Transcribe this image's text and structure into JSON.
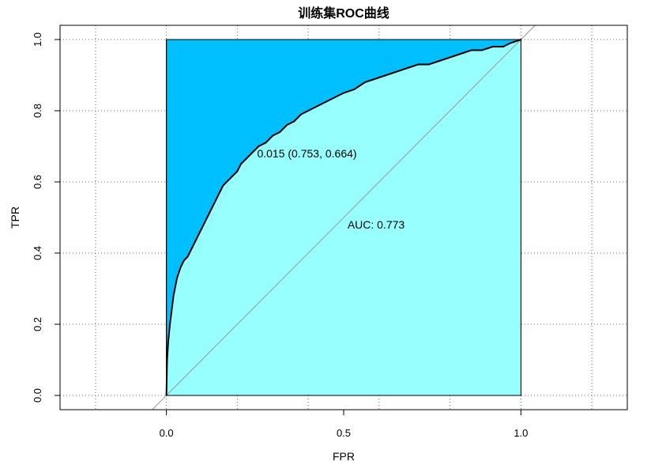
{
  "chart_data": {
    "type": "area",
    "title": "训练集ROC曲线",
    "xlabel": "FPR",
    "ylabel": "TPR",
    "xlim": [
      -0.3,
      1.3
    ],
    "ylim": [
      -0.04,
      1.04
    ],
    "x_ticks": [
      "0.0",
      "0.5",
      "1.0"
    ],
    "x_tick_values": [
      0,
      0.5,
      1
    ],
    "y_ticks": [
      "0.0",
      "0.2",
      "0.4",
      "0.6",
      "0.8",
      "1.0"
    ],
    "y_tick_values": [
      0,
      0.2,
      0.4,
      0.6,
      0.8,
      1
    ],
    "grid": true,
    "grid_x": [
      -0.2,
      0,
      0.2,
      0.4,
      0.6,
      0.8,
      1,
      1.2
    ],
    "grid_y": [
      0,
      0.2,
      0.4,
      0.6,
      0.8,
      1
    ],
    "series": [
      {
        "x": [
          0,
          0.002,
          0.005,
          0.01,
          0.015,
          0.02,
          0.03,
          0.04,
          0.05,
          0.06,
          0.07,
          0.08,
          0.09,
          0.1,
          0.11,
          0.12,
          0.13,
          0.14,
          0.15,
          0.16,
          0.17,
          0.18,
          0.19,
          0.2,
          0.21,
          0.22,
          0.23,
          0.24,
          0.26,
          0.28,
          0.3,
          0.32,
          0.34,
          0.36,
          0.38,
          0.4,
          0.42,
          0.44,
          0.46,
          0.48,
          0.5,
          0.53,
          0.56,
          0.59,
          0.62,
          0.65,
          0.68,
          0.71,
          0.74,
          0.77,
          0.8,
          0.83,
          0.86,
          0.89,
          0.92,
          0.95,
          0.97,
          1
        ],
        "y": [
          0,
          0.1,
          0.15,
          0.2,
          0.24,
          0.28,
          0.33,
          0.36,
          0.38,
          0.39,
          0.41,
          0.43,
          0.45,
          0.47,
          0.49,
          0.51,
          0.53,
          0.55,
          0.57,
          0.59,
          0.6,
          0.61,
          0.62,
          0.63,
          0.65,
          0.66,
          0.67,
          0.68,
          0.7,
          0.71,
          0.73,
          0.74,
          0.76,
          0.77,
          0.79,
          0.8,
          0.81,
          0.82,
          0.83,
          0.84,
          0.85,
          0.86,
          0.88,
          0.89,
          0.9,
          0.91,
          0.92,
          0.93,
          0.93,
          0.94,
          0.95,
          0.96,
          0.97,
          0.97,
          0.98,
          0.98,
          0.99,
          1
        ]
      }
    ],
    "reference_line": {
      "from": [
        0,
        0
      ],
      "to": [
        1,
        1
      ]
    },
    "fill_colors": {
      "above_curve": "#00BFFF",
      "below_curve": "#98FFFF"
    },
    "curve_color": "#000000",
    "threshold_point": {
      "x": 0.247,
      "y": 0.664,
      "label": "0.015 (0.753, 0.664)"
    },
    "auc_text": {
      "x": 0.5,
      "y": 0.48,
      "label": "AUC: 0.773"
    }
  }
}
